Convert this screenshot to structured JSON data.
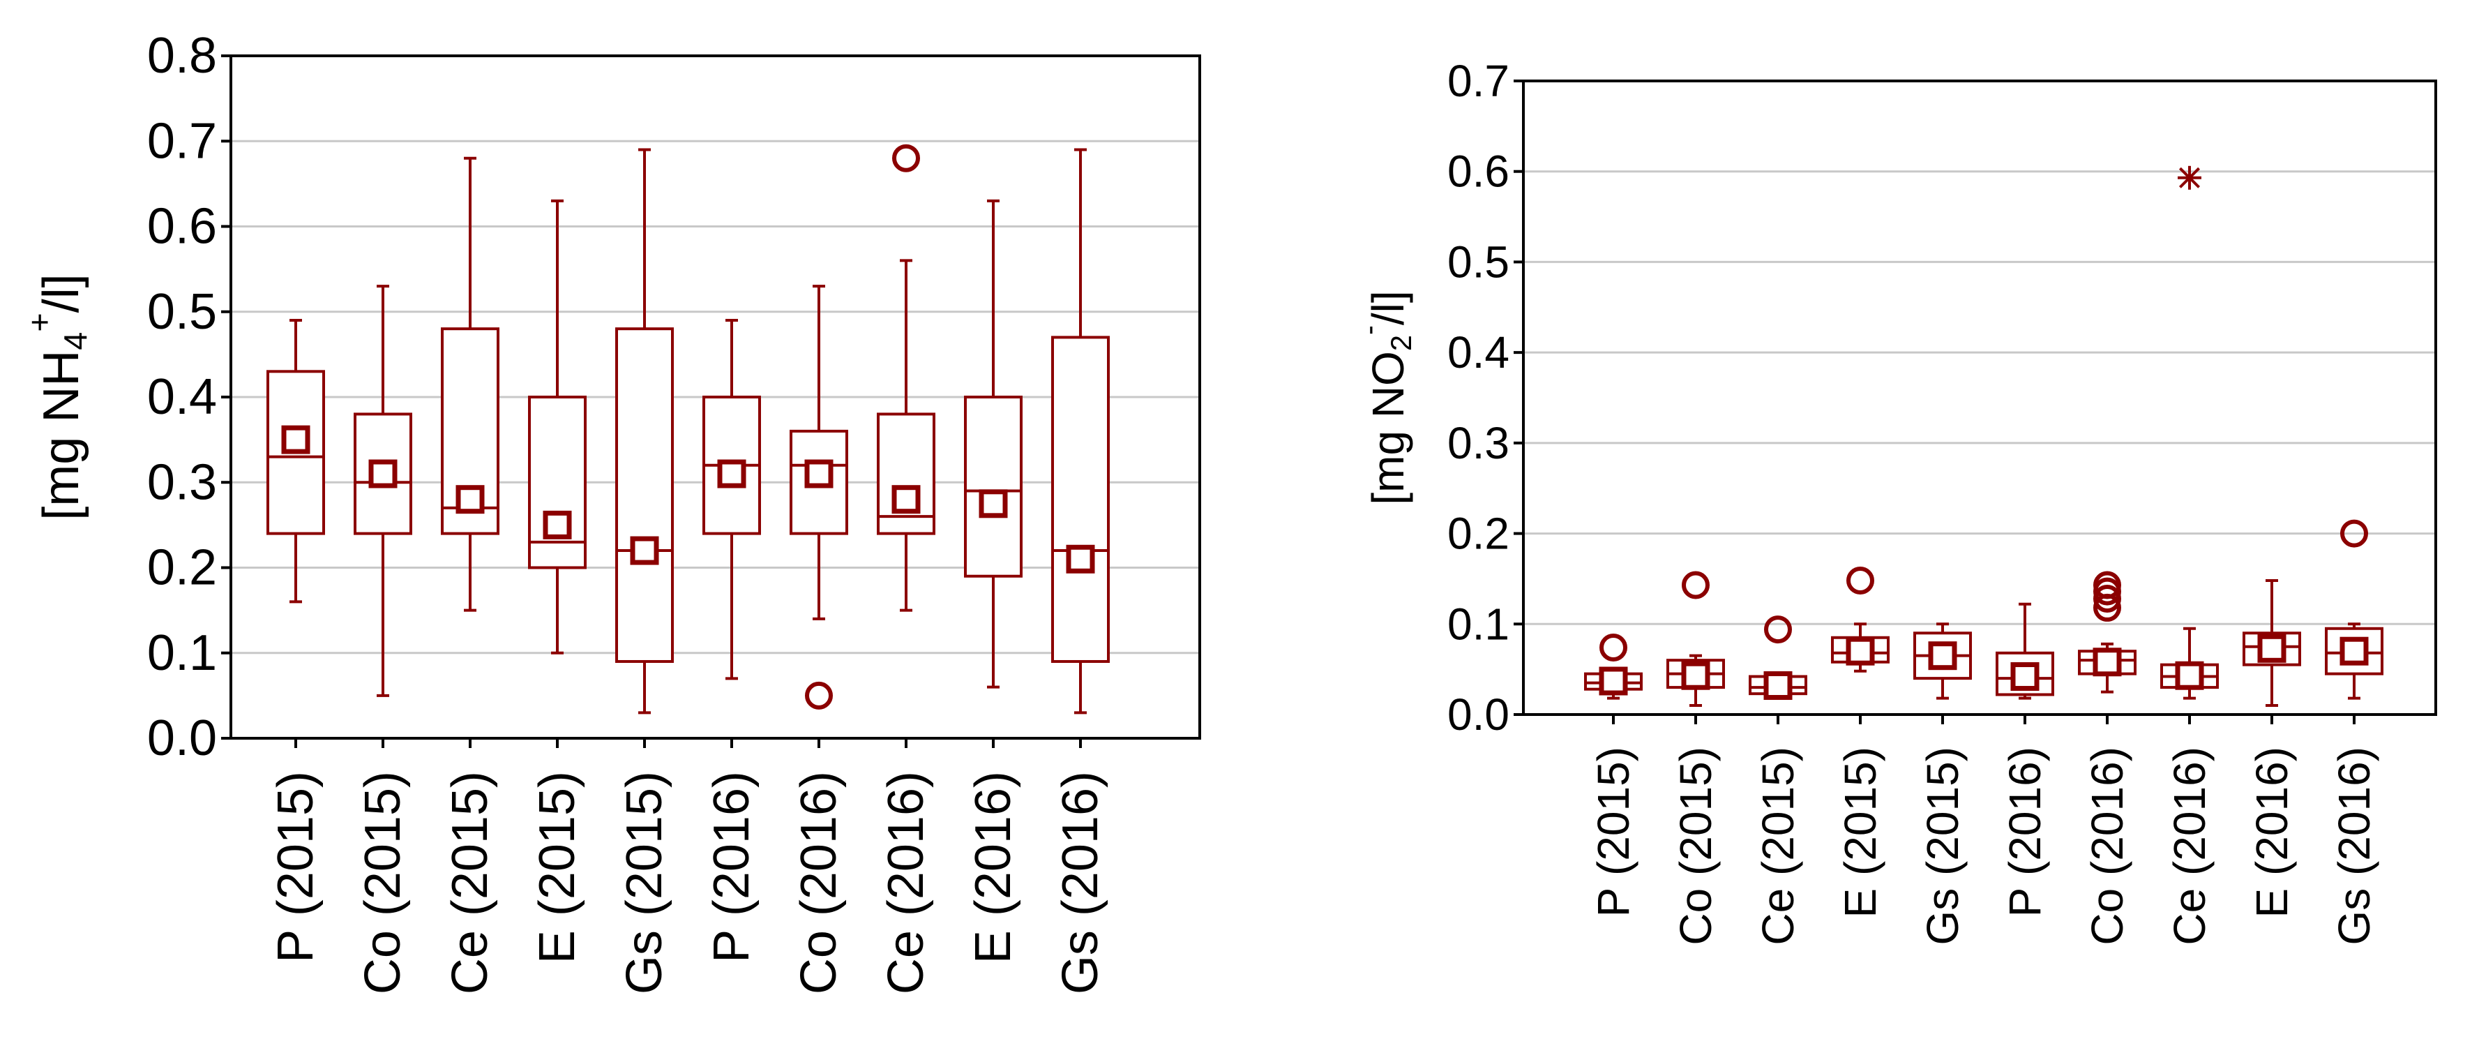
{
  "color": "#8b0000",
  "grid_color": "#c8c8c8",
  "chart_data": [
    {
      "type": "box",
      "ylabel": {
        "prefix": "[mg NH",
        "sub": "4",
        "sup": "+",
        "suffix": "/l]"
      },
      "ylim": [
        0,
        0.8
      ],
      "yticks": [
        "0.0",
        "0.1",
        "0.2",
        "0.3",
        "0.4",
        "0.5",
        "0.6",
        "0.7",
        "0.8"
      ],
      "grid": true,
      "categories": [
        "P (2015)",
        "Co (2015)",
        "Ce (2015)",
        "E (2015)",
        "Gs (2015)",
        "P (2016)",
        "Co (2016)",
        "Ce (2016)",
        "E (2016)",
        "Gs (2016)"
      ],
      "boxes": [
        {
          "min": 0.16,
          "q1": 0.24,
          "median": 0.33,
          "q3": 0.43,
          "max": 0.49,
          "mean": 0.35,
          "outliers": [],
          "extremes": []
        },
        {
          "min": 0.05,
          "q1": 0.24,
          "median": 0.3,
          "q3": 0.38,
          "max": 0.53,
          "mean": 0.31,
          "outliers": [],
          "extremes": []
        },
        {
          "min": 0.15,
          "q1": 0.24,
          "median": 0.27,
          "q3": 0.48,
          "max": 0.68,
          "mean": 0.28,
          "outliers": [],
          "extremes": []
        },
        {
          "min": 0.1,
          "q1": 0.2,
          "median": 0.23,
          "q3": 0.4,
          "max": 0.63,
          "mean": 0.25,
          "outliers": [],
          "extremes": []
        },
        {
          "min": 0.03,
          "q1": 0.09,
          "median": 0.22,
          "q3": 0.48,
          "max": 0.69,
          "mean": 0.22,
          "outliers": [],
          "extremes": []
        },
        {
          "min": 0.07,
          "q1": 0.24,
          "median": 0.32,
          "q3": 0.4,
          "max": 0.49,
          "mean": 0.31,
          "outliers": [],
          "extremes": []
        },
        {
          "min": 0.14,
          "q1": 0.24,
          "median": 0.32,
          "q3": 0.36,
          "max": 0.53,
          "mean": 0.31,
          "outliers": [
            0.05
          ],
          "extremes": []
        },
        {
          "min": 0.15,
          "q1": 0.24,
          "median": 0.26,
          "q3": 0.38,
          "max": 0.56,
          "mean": 0.28,
          "outliers": [
            0.68
          ],
          "extremes": []
        },
        {
          "min": 0.06,
          "q1": 0.19,
          "median": 0.29,
          "q3": 0.4,
          "max": 0.63,
          "mean": 0.275,
          "outliers": [],
          "extremes": []
        },
        {
          "min": 0.03,
          "q1": 0.09,
          "median": 0.22,
          "q3": 0.47,
          "max": 0.69,
          "mean": 0.21,
          "outliers": [],
          "extremes": []
        }
      ]
    },
    {
      "type": "box",
      "ylabel": {
        "prefix": "[mg NO",
        "sub": "2",
        "sup": "-",
        "suffix": "/l]"
      },
      "ylim": [
        0,
        0.7
      ],
      "yticks": [
        "0.0",
        "0.1",
        "0.2",
        "0.3",
        "0.4",
        "0.5",
        "0.6",
        "0.7"
      ],
      "grid": true,
      "categories": [
        "P (2015)",
        "Co (2015)",
        "Ce (2015)",
        "E (2015)",
        "Gs (2015)",
        "P (2016)",
        "Co (2016)",
        "Ce (2016)",
        "E (2016)",
        "Gs (2016)"
      ],
      "boxes": [
        {
          "min": 0.018,
          "q1": 0.028,
          "median": 0.035,
          "q3": 0.045,
          "max": 0.05,
          "mean": 0.037,
          "outliers": [
            0.074
          ],
          "extremes": []
        },
        {
          "min": 0.01,
          "q1": 0.03,
          "median": 0.045,
          "q3": 0.06,
          "max": 0.065,
          "mean": 0.043,
          "outliers": [
            0.143
          ],
          "extremes": []
        },
        {
          "min": 0.02,
          "q1": 0.023,
          "median": 0.03,
          "q3": 0.042,
          "max": 0.045,
          "mean": 0.032,
          "outliers": [
            0.094
          ],
          "extremes": []
        },
        {
          "min": 0.048,
          "q1": 0.058,
          "median": 0.068,
          "q3": 0.085,
          "max": 0.1,
          "mean": 0.07,
          "outliers": [
            0.148
          ],
          "extremes": []
        },
        {
          "min": 0.018,
          "q1": 0.04,
          "median": 0.065,
          "q3": 0.09,
          "max": 0.1,
          "mean": 0.065,
          "outliers": [],
          "extremes": []
        },
        {
          "min": 0.018,
          "q1": 0.022,
          "median": 0.04,
          "q3": 0.068,
          "max": 0.122,
          "mean": 0.042,
          "outliers": [],
          "extremes": []
        },
        {
          "min": 0.025,
          "q1": 0.045,
          "median": 0.06,
          "q3": 0.07,
          "max": 0.078,
          "mean": 0.058,
          "outliers": [
            0.118,
            0.128,
            0.136,
            0.143
          ],
          "extremes": []
        },
        {
          "min": 0.018,
          "q1": 0.03,
          "median": 0.042,
          "q3": 0.055,
          "max": 0.095,
          "mean": 0.043,
          "outliers": [],
          "extremes": [
            0.593
          ]
        },
        {
          "min": 0.01,
          "q1": 0.055,
          "median": 0.075,
          "q3": 0.09,
          "max": 0.148,
          "mean": 0.073,
          "outliers": [],
          "extremes": []
        },
        {
          "min": 0.018,
          "q1": 0.045,
          "median": 0.068,
          "q3": 0.095,
          "max": 0.1,
          "mean": 0.07,
          "outliers": [
            0.2
          ],
          "extremes": []
        }
      ]
    }
  ]
}
